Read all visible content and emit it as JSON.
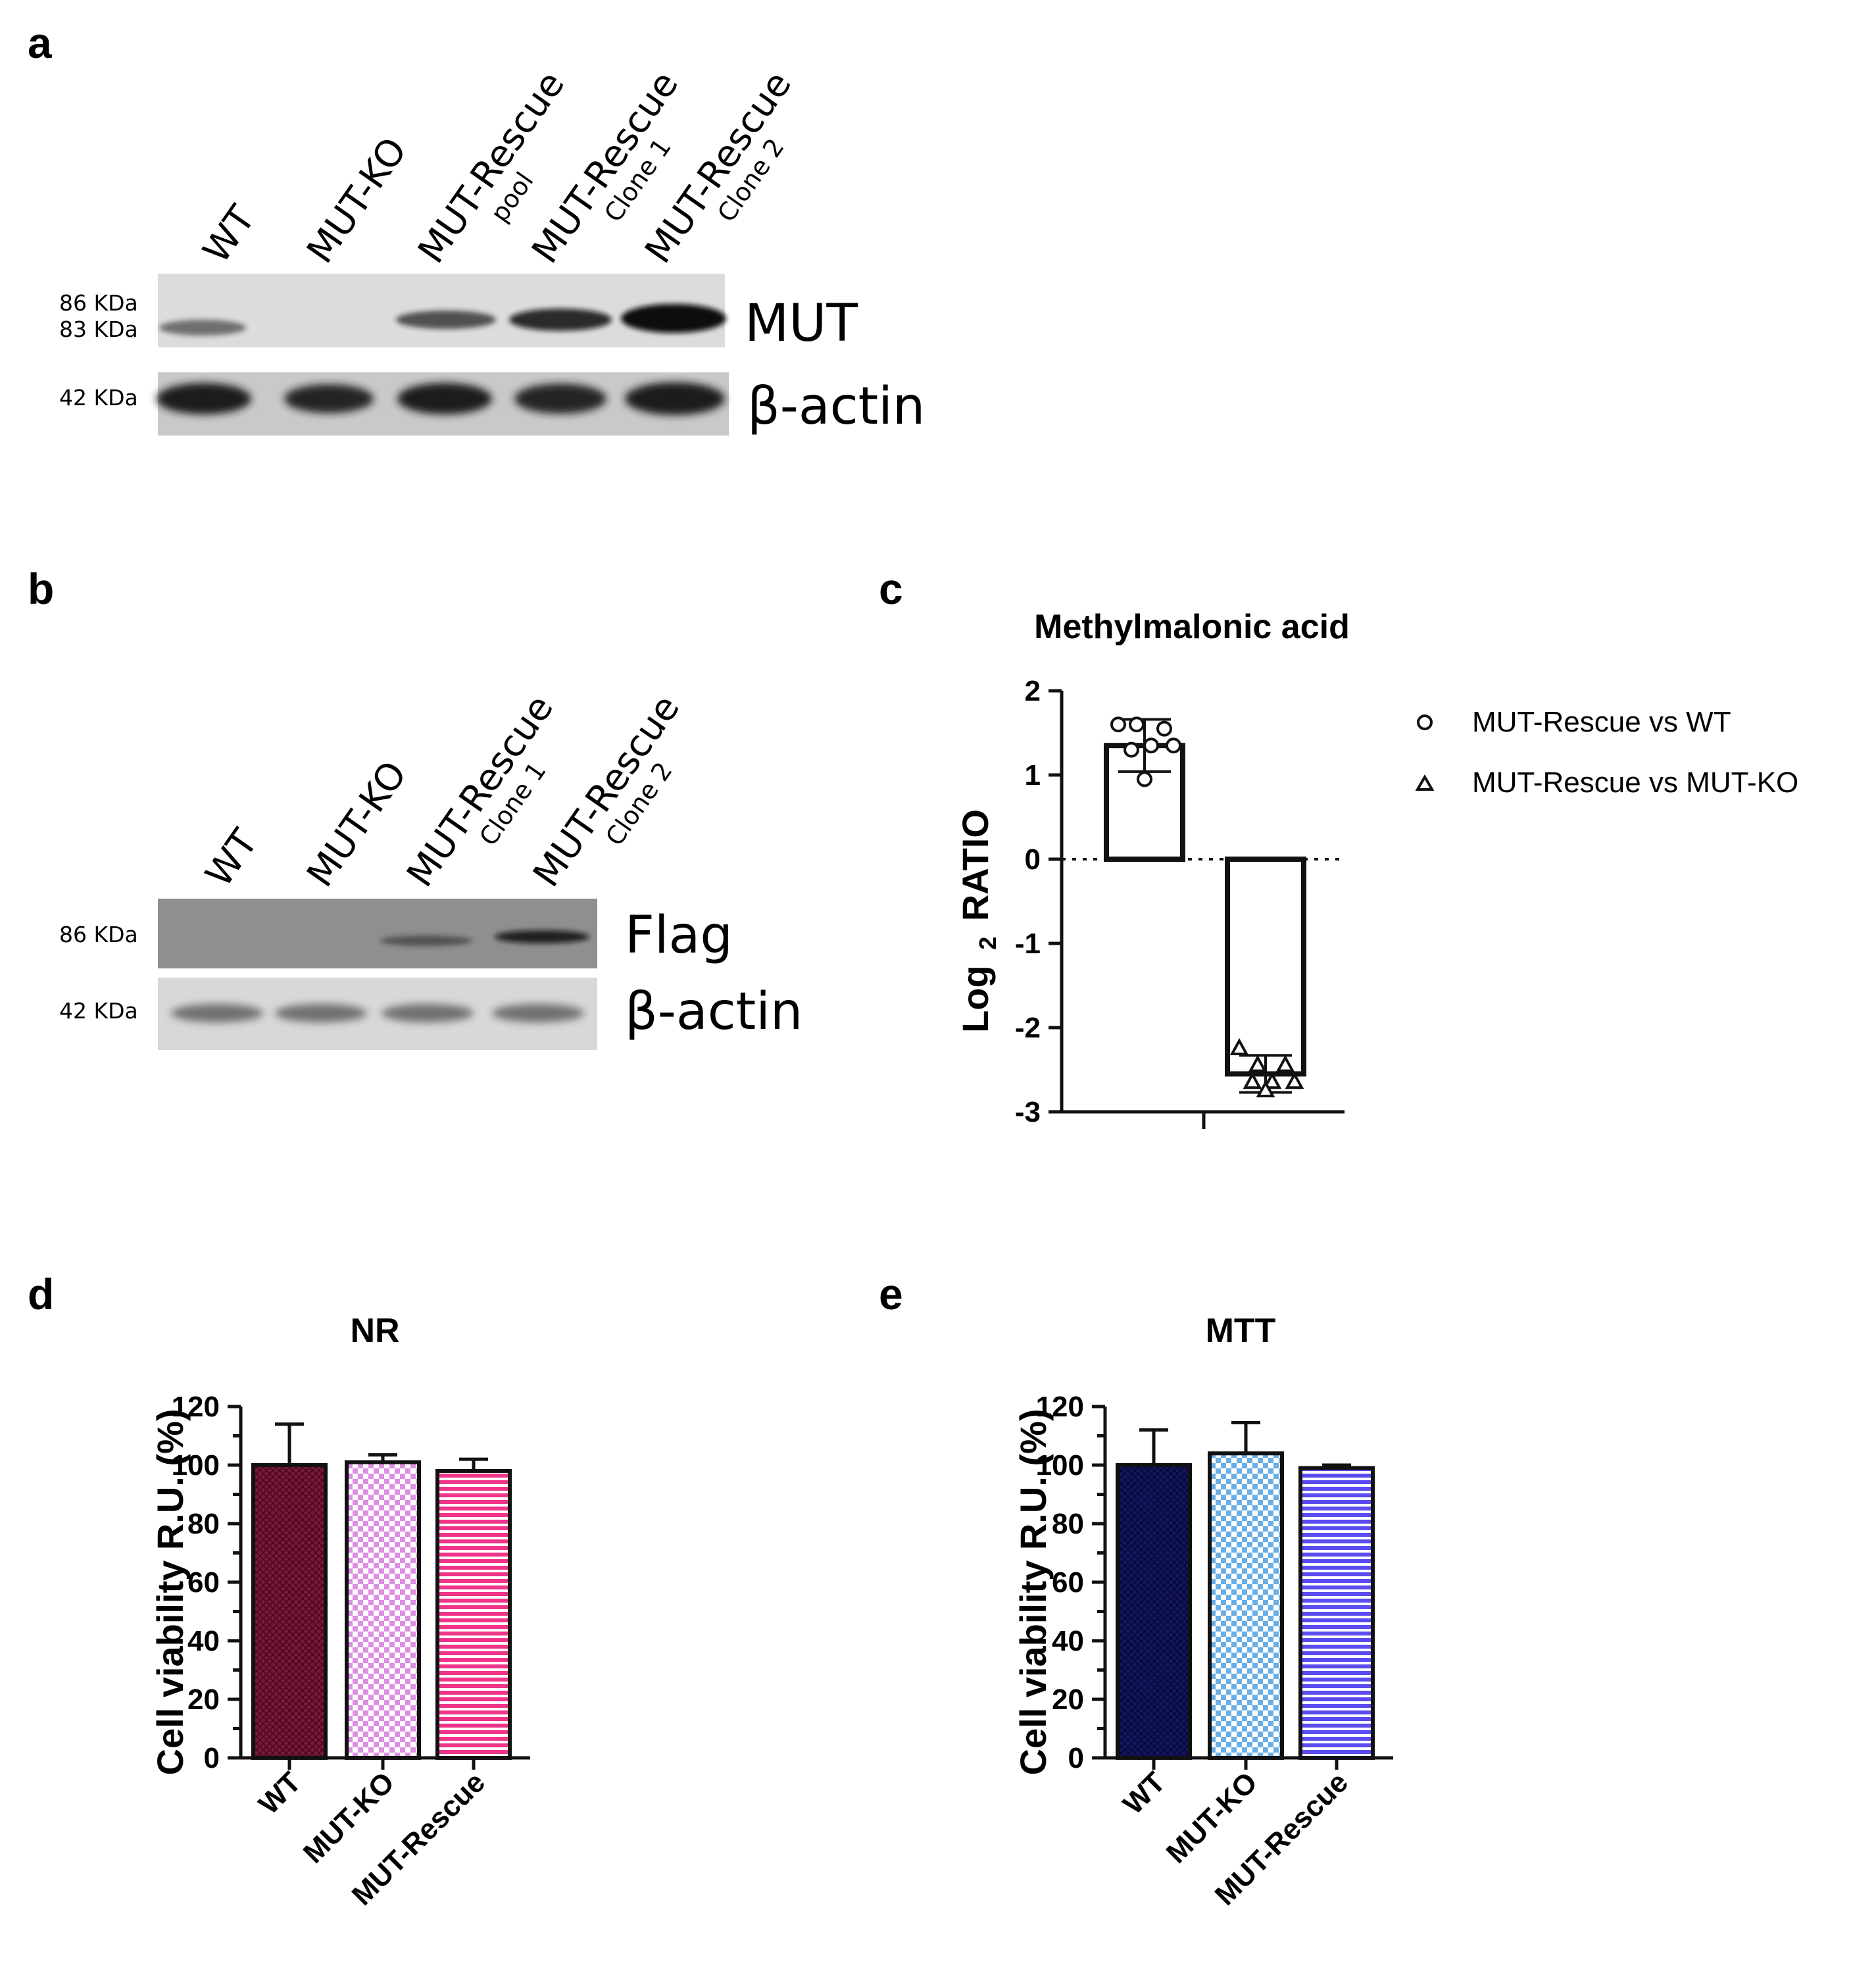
{
  "panels": {
    "a": {
      "letter": "a",
      "lanes": [
        {
          "name": "WT",
          "sub": ""
        },
        {
          "name": "MUT-KO",
          "sub": ""
        },
        {
          "name": "MUT-Rescue",
          "sub": "pool"
        },
        {
          "name": "MUT-Rescue",
          "sub": "Clone 1"
        },
        {
          "name": "MUT-Rescue",
          "sub": "Clone 2"
        }
      ],
      "blots": [
        {
          "protein": "MUT",
          "mw": [
            "86 KDa",
            "83 KDa"
          ],
          "band_intensity": [
            0.55,
            0,
            0.7,
            0.85,
            1.0
          ]
        },
        {
          "protein": "β-actin",
          "mw": [
            "42 KDa"
          ],
          "band_intensity": [
            1.0,
            0.95,
            1.0,
            0.95,
            1.0
          ]
        }
      ]
    },
    "b": {
      "letter": "b",
      "lanes": [
        {
          "name": "WT",
          "sub": ""
        },
        {
          "name": "MUT-KO",
          "sub": ""
        },
        {
          "name": "MUT-Rescue",
          "sub": "Clone 1"
        },
        {
          "name": "MUT-Rescue",
          "sub": "Clone 2"
        }
      ],
      "blots": [
        {
          "protein": "Flag",
          "mw": [
            "86 KDa"
          ],
          "band_intensity": [
            0,
            0,
            0.45,
            0.8
          ]
        },
        {
          "protein": "β-actin",
          "mw": [
            "42 KDa"
          ],
          "band_intensity": [
            0.7,
            0.7,
            0.7,
            0.7
          ]
        }
      ]
    },
    "c": {
      "letter": "c"
    },
    "d": {
      "letter": "d"
    },
    "e": {
      "letter": "e"
    }
  },
  "chart_data": [
    {
      "panel": "c",
      "type": "bar",
      "title": "Methylmalonic acid",
      "ylabel_main": "Log",
      "ylabel_sub": "2",
      "ylabel_rest": "RATIO",
      "ylim": [
        -3,
        2
      ],
      "yticks": [
        2,
        1,
        0,
        -1,
        -2,
        -3
      ],
      "reference_line": 0,
      "legend_position": "right",
      "series": [
        {
          "name": "MUT-Rescue vs WT",
          "marker": "circle",
          "value": 1.35,
          "error": 0.31,
          "points": [
            1.6,
            1.6,
            1.55,
            1.35,
            1.35,
            1.3,
            0.95
          ]
        },
        {
          "name": "MUT-Rescue vs MUT-KO",
          "marker": "triangle",
          "value": -2.55,
          "error": 0.22,
          "points": [
            -2.25,
            -2.45,
            -2.45,
            -2.65,
            -2.65,
            -2.65,
            -2.75
          ]
        }
      ]
    },
    {
      "panel": "d",
      "type": "bar",
      "title": "NR",
      "ylabel": "Cell viability R.U. (%)",
      "ylim": [
        0,
        120
      ],
      "yticks": [
        0,
        20,
        40,
        60,
        80,
        100,
        120
      ],
      "categories": [
        "WT",
        "MUT-KO",
        "MUT-Rescue"
      ],
      "values": [
        100,
        101,
        98
      ],
      "errors": [
        14,
        2.5,
        4
      ],
      "colors": [
        "#7a1838",
        "#dd8fe2",
        "#f0348a"
      ],
      "patterns": [
        "grid",
        "checker",
        "hlines"
      ]
    },
    {
      "panel": "e",
      "type": "bar",
      "title": "MTT",
      "ylabel": "Cell viability R.U. (%)",
      "ylim": [
        0,
        120
      ],
      "yticks": [
        0,
        20,
        40,
        60,
        80,
        100,
        120
      ],
      "categories": [
        "WT",
        "MUT-KO",
        "MUT-Rescue"
      ],
      "values": [
        100,
        104,
        99
      ],
      "errors": [
        12,
        10.5,
        1
      ],
      "colors": [
        "#14175f",
        "#6aaee6",
        "#5a4cf0"
      ],
      "patterns": [
        "grid",
        "checker",
        "hlines"
      ]
    }
  ]
}
